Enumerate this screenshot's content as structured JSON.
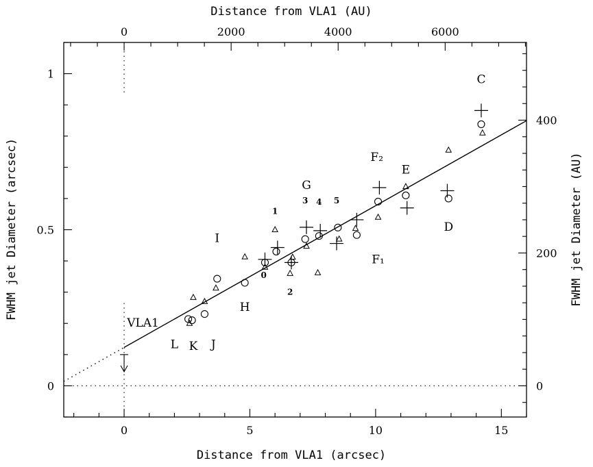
{
  "chart_data": {
    "type": "scatter",
    "xlabel": "Distance from  VLA1 (arcsec)",
    "ylabel": "FWHM jet Diameter (arcsec)",
    "x2label": "Distance from  VLA1 (AU)",
    "y2label": "FWHM jet Diameter (AU)",
    "xlim": [
      -2.4,
      16.0
    ],
    "ylim": [
      -0.1,
      1.1
    ],
    "x_ticks": [
      {
        "value": 0,
        "label": "0"
      },
      {
        "value": 5,
        "label": "5"
      },
      {
        "value": 10,
        "label": "10"
      },
      {
        "value": 15,
        "label": "15"
      }
    ],
    "y_ticks": [
      {
        "value": 0,
        "label": "0"
      },
      {
        "value": 0.5,
        "label": "0.5"
      },
      {
        "value": 1,
        "label": "1"
      }
    ],
    "x2_ticks": [
      {
        "value": 0,
        "label": "0"
      },
      {
        "value": 2000,
        "label": "2000"
      },
      {
        "value": 4000,
        "label": "4000"
      },
      {
        "value": 6000,
        "label": "6000"
      }
    ],
    "y2_ticks": [
      {
        "value": 0,
        "label": "0"
      },
      {
        "value": 200,
        "label": "200"
      },
      {
        "value": 400,
        "label": "400"
      }
    ],
    "au_per_arcsec": 470,
    "grid": false,
    "series": [
      {
        "marker": "circle",
        "x": [
          2.55,
          2.7,
          3.2,
          3.7,
          4.8,
          5.6,
          6.05,
          6.65,
          7.2,
          7.75,
          8.5,
          9.25,
          10.1,
          11.2,
          12.9,
          14.2
        ],
        "y": [
          0.214,
          0.21,
          0.23,
          0.343,
          0.33,
          0.395,
          0.43,
          0.395,
          0.47,
          0.48,
          0.507,
          0.483,
          0.59,
          0.61,
          0.6,
          0.838
        ]
      },
      {
        "marker": "triangle",
        "x": [
          2.6,
          2.75,
          3.2,
          3.65,
          4.8,
          5.6,
          6.0,
          6.6,
          6.7,
          7.25,
          7.7,
          8.55,
          9.2,
          10.1,
          11.2,
          12.9,
          14.25
        ],
        "y": [
          0.2,
          0.283,
          0.27,
          0.313,
          0.413,
          0.38,
          0.5,
          0.36,
          0.412,
          0.447,
          0.362,
          0.47,
          0.504,
          0.54,
          0.638,
          0.755,
          0.81
        ]
      },
      {
        "marker": "plus",
        "x": [
          5.6,
          6.1,
          6.65,
          7.25,
          7.8,
          8.45,
          9.25,
          10.15,
          11.25,
          12.85,
          14.2
        ],
        "y": [
          0.405,
          0.443,
          0.395,
          0.508,
          0.497,
          0.456,
          0.532,
          0.635,
          0.57,
          0.625,
          0.882
        ]
      }
    ],
    "fit_line": {
      "x_from": 0,
      "x_to": 16.0,
      "y_at_0": 0.123,
      "slope": 0.0454,
      "dotted_from": -2.4
    },
    "reference_lines": [
      {
        "orientation": "horizontal",
        "value": 0,
        "style": "dotted"
      },
      {
        "orientation": "vertical",
        "value": 0,
        "style": "dotted",
        "y_from": 0.265
      }
    ],
    "upper_limit": {
      "x": 0,
      "y": 0.1
    },
    "annotations": [
      {
        "text": "C",
        "x": 14.2,
        "y": 0.97,
        "size": "big"
      },
      {
        "text": "F₂",
        "x": 10.05,
        "y": 0.72,
        "size": "big"
      },
      {
        "text": "E",
        "x": 11.2,
        "y": 0.68,
        "size": "big"
      },
      {
        "text": "G",
        "x": 7.25,
        "y": 0.63,
        "size": "big"
      },
      {
        "text": "D",
        "x": 12.9,
        "y": 0.497,
        "size": "big"
      },
      {
        "text": "F₁",
        "x": 10.1,
        "y": 0.392,
        "size": "big"
      },
      {
        "text": "I",
        "x": 3.7,
        "y": 0.46,
        "size": "big"
      },
      {
        "text": "H",
        "x": 4.8,
        "y": 0.24,
        "size": "big"
      },
      {
        "text": "VLA1",
        "x": 0.75,
        "y": 0.19,
        "size": "big"
      },
      {
        "text": "L",
        "x": 2.0,
        "y": 0.12,
        "size": "big"
      },
      {
        "text": "K",
        "x": 2.75,
        "y": 0.115,
        "size": "big"
      },
      {
        "text": "J",
        "x": 3.55,
        "y": 0.12,
        "size": "big"
      },
      {
        "text": "1",
        "x": 6.0,
        "y": 0.55,
        "size": "small"
      },
      {
        "text": "3",
        "x": 7.2,
        "y": 0.585,
        "size": "small"
      },
      {
        "text": "4",
        "x": 7.75,
        "y": 0.58,
        "size": "small"
      },
      {
        "text": "5",
        "x": 8.45,
        "y": 0.585,
        "size": "small"
      },
      {
        "text": "0",
        "x": 5.55,
        "y": 0.345,
        "size": "small"
      },
      {
        "text": "2",
        "x": 6.6,
        "y": 0.292,
        "size": "small"
      }
    ]
  }
}
